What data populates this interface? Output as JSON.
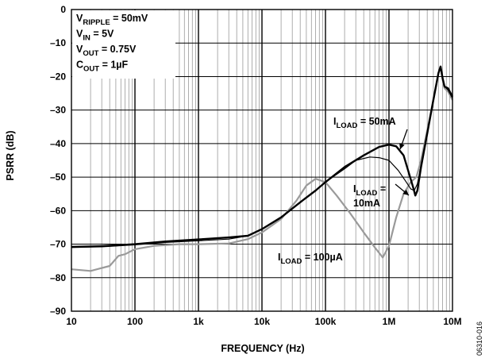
{
  "chart_data": {
    "type": "line",
    "xlabel": "FREQUENCY (Hz)",
    "ylabel": "PSRR (dB)",
    "x_scale": "log",
    "xlim": [
      10,
      10000000
    ],
    "ylim": [
      -90,
      0
    ],
    "grid": true,
    "x_ticks": [
      {
        "value": 10,
        "label": "10"
      },
      {
        "value": 100,
        "label": "100"
      },
      {
        "value": 1000,
        "label": "1k"
      },
      {
        "value": 10000,
        "label": "10k"
      },
      {
        "value": 100000,
        "label": "100k"
      },
      {
        "value": 1000000,
        "label": "1M"
      },
      {
        "value": 10000000,
        "label": "10M"
      }
    ],
    "y_ticks": [
      {
        "value": 0,
        "label": "0"
      },
      {
        "value": -10,
        "label": "–10"
      },
      {
        "value": -20,
        "label": "–20"
      },
      {
        "value": -30,
        "label": "–30"
      },
      {
        "value": -40,
        "label": "–40"
      },
      {
        "value": -50,
        "label": "–50"
      },
      {
        "value": -60,
        "label": "–60"
      },
      {
        "value": -70,
        "label": "–70"
      },
      {
        "value": -80,
        "label": "–80"
      },
      {
        "value": -90,
        "label": "–90"
      }
    ],
    "conditions": [
      {
        "main": "V",
        "sub": "RIPPLE",
        "rest": " = 50mV"
      },
      {
        "main": "V",
        "sub": "IN",
        "rest": " = 5V"
      },
      {
        "main": "V",
        "sub": "OUT",
        "rest": " = 0.75V"
      },
      {
        "main": "C",
        "sub": "OUT",
        "rest": " = 1µF"
      }
    ],
    "series": [
      {
        "name": "I LOAD = 50mA",
        "color": "#000000",
        "points": [
          [
            10,
            -70.8
          ],
          [
            30,
            -70.6
          ],
          [
            100,
            -70
          ],
          [
            300,
            -69.2
          ],
          [
            1000,
            -68.6
          ],
          [
            3000,
            -68
          ],
          [
            6000,
            -67.5
          ],
          [
            10000,
            -65.5
          ],
          [
            20000,
            -62
          ],
          [
            40000,
            -57.5
          ],
          [
            70000,
            -54
          ],
          [
            100000,
            -51.5
          ],
          [
            200000,
            -47
          ],
          [
            400000,
            -43.5
          ],
          [
            700000,
            -41
          ],
          [
            1000000,
            -40.3
          ],
          [
            1300000,
            -40.8
          ],
          [
            1700000,
            -43.5
          ],
          [
            2000000,
            -48
          ],
          [
            2400000,
            -53
          ],
          [
            2600000,
            -55.5
          ],
          [
            2800000,
            -54
          ],
          [
            3200000,
            -47
          ],
          [
            4000000,
            -37
          ],
          [
            5000000,
            -27
          ],
          [
            6000000,
            -19
          ],
          [
            6500000,
            -17
          ],
          [
            7000000,
            -20.5
          ],
          [
            7500000,
            -23
          ],
          [
            8500000,
            -23.5
          ],
          [
            10000000,
            -26
          ]
        ]
      },
      {
        "name": "I LOAD = 10mA",
        "color": "#000000",
        "points": [
          [
            10,
            -71
          ],
          [
            30,
            -70.8
          ],
          [
            100,
            -70.2
          ],
          [
            300,
            -69.5
          ],
          [
            1000,
            -69
          ],
          [
            3000,
            -68.5
          ],
          [
            6000,
            -67.5
          ],
          [
            10000,
            -65.5
          ],
          [
            20000,
            -62
          ],
          [
            40000,
            -57.5
          ],
          [
            70000,
            -54
          ],
          [
            100000,
            -51.5
          ],
          [
            200000,
            -47.5
          ],
          [
            300000,
            -45
          ],
          [
            500000,
            -44
          ],
          [
            700000,
            -44.2
          ],
          [
            1000000,
            -45
          ],
          [
            1400000,
            -48
          ],
          [
            1800000,
            -51
          ],
          [
            2200000,
            -53.5
          ],
          [
            2500000,
            -54
          ],
          [
            2800000,
            -52
          ],
          [
            3200000,
            -46.5
          ],
          [
            4000000,
            -37
          ],
          [
            5000000,
            -27
          ],
          [
            6000000,
            -19
          ],
          [
            6500000,
            -17
          ],
          [
            7000000,
            -20.5
          ],
          [
            7500000,
            -23
          ],
          [
            8500000,
            -24
          ],
          [
            10000000,
            -26.5
          ]
        ]
      },
      {
        "name": "I LOAD = 100µA",
        "color": "#9a9a9a",
        "points": [
          [
            10,
            -77.5
          ],
          [
            20,
            -78
          ],
          [
            40,
            -76.5
          ],
          [
            55,
            -73.5
          ],
          [
            70,
            -73
          ],
          [
            100,
            -71.5
          ],
          [
            200,
            -70.5
          ],
          [
            500,
            -70
          ],
          [
            1000,
            -70
          ],
          [
            3000,
            -69.8
          ],
          [
            6000,
            -68.5
          ],
          [
            10000,
            -66.5
          ],
          [
            20000,
            -62.5
          ],
          [
            35000,
            -57
          ],
          [
            50000,
            -52.5
          ],
          [
            70000,
            -50.5
          ],
          [
            100000,
            -51.5
          ],
          [
            150000,
            -55.5
          ],
          [
            250000,
            -61
          ],
          [
            400000,
            -66.5
          ],
          [
            600000,
            -71
          ],
          [
            800000,
            -74
          ],
          [
            1000000,
            -70.5
          ],
          [
            1300000,
            -62
          ],
          [
            1700000,
            -55
          ],
          [
            2200000,
            -51.5
          ],
          [
            2700000,
            -50
          ],
          [
            3200000,
            -45
          ],
          [
            4000000,
            -36
          ],
          [
            5000000,
            -27
          ],
          [
            6000000,
            -19
          ],
          [
            6500000,
            -17
          ],
          [
            7000000,
            -21
          ],
          [
            7500000,
            -23.5
          ],
          [
            8500000,
            -24.5
          ],
          [
            10000000,
            -27
          ]
        ]
      }
    ],
    "annotations": [
      {
        "lines": [
          {
            "main": "I",
            "sub": "LOAD",
            "rest": " = 50mA"
          }
        ],
        "pos": [
          420,
          157
        ],
        "arrow_from": [
          513,
          163
        ],
        "arrow_to": [
          504,
          188
        ]
      },
      {
        "lines": [
          {
            "main": "I",
            "sub": "LOAD",
            "rest": " = "
          },
          {
            "main": "",
            "sub": "",
            "rest": "10mA"
          }
        ],
        "pos": [
          445,
          242
        ],
        "arrow_from": [
          498,
          232
        ],
        "arrow_to": [
          515,
          246
        ]
      },
      {
        "lines": [
          {
            "main": "I",
            "sub": "LOAD",
            "rest": " = 100µA"
          }
        ],
        "pos": [
          350,
          328
        ]
      }
    ]
  },
  "figure_id": "06310-016"
}
